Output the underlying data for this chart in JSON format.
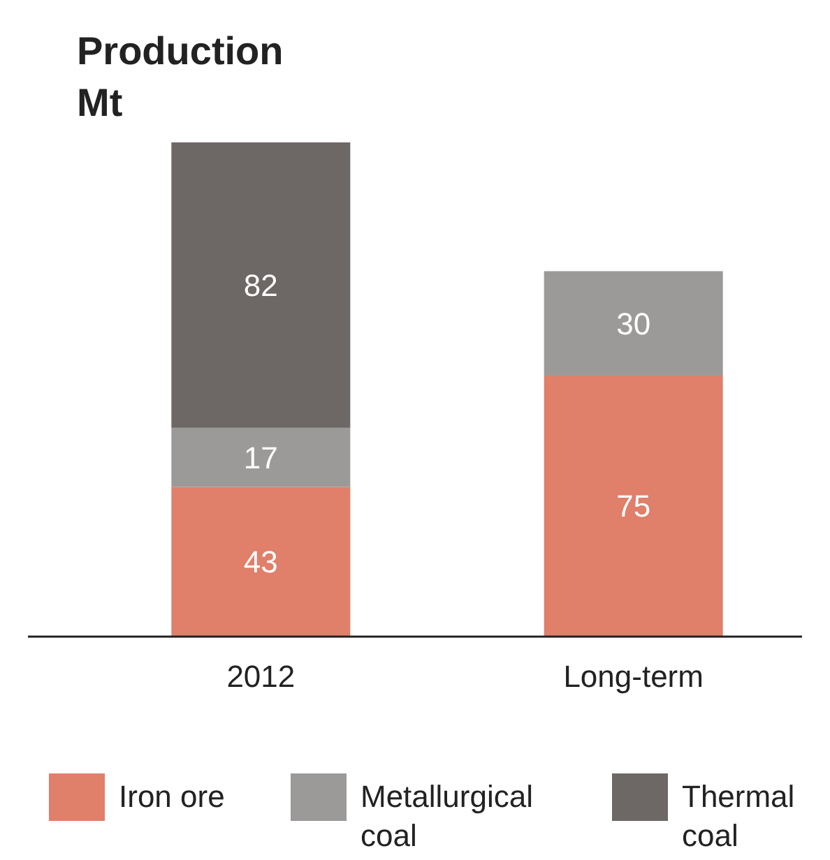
{
  "chart_data": {
    "type": "bar",
    "title": "Production",
    "subtitle": "Mt",
    "categories": [
      "2012",
      "Long-term"
    ],
    "stacked": true,
    "data_labels": true,
    "legend": "bottom",
    "series": [
      {
        "name": "Iron ore",
        "color": "#e07f6a",
        "values": [
          43,
          75
        ]
      },
      {
        "name": "Metallurgical coal",
        "color": "#9b9a99",
        "values": [
          17,
          30
        ]
      },
      {
        "name": "Thermal coal",
        "color": "#6d6766",
        "values": [
          82,
          null
        ]
      }
    ]
  }
}
